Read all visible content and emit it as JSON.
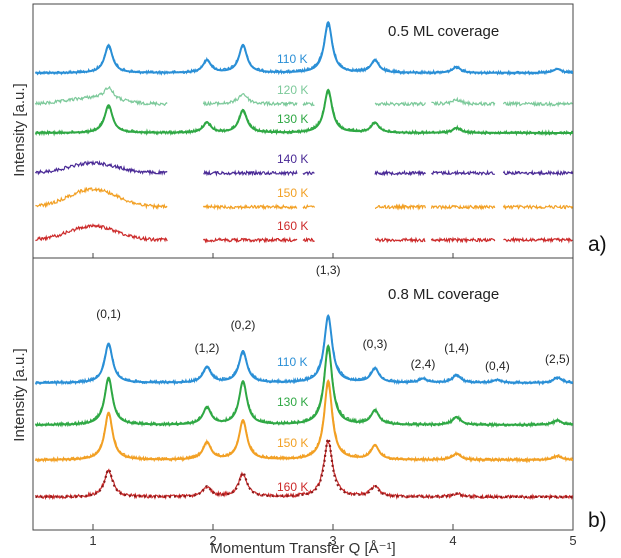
{
  "chart_data": [
    {
      "panel_label": "a)",
      "type": "line",
      "annotation": "0.5 ML coverage",
      "xlabel": "Momentum Transfer Q [Å⁻¹]",
      "ylabel": "Intensity [a.u.]",
      "xlim": [
        0.5,
        5.0
      ],
      "series": [
        {
          "name": "110 K",
          "color": "#2a8fd6",
          "fit": true,
          "segments": [
            [
              0.52,
              5.0
            ]
          ],
          "peaks": [
            [
              1.13,
              0.55
            ],
            [
              1.95,
              0.25
            ],
            [
              2.25,
              0.55
            ],
            [
              2.96,
              1.0
            ],
            [
              3.35,
              0.25
            ],
            [
              4.03,
              0.12
            ],
            [
              4.87,
              0.08
            ]
          ]
        },
        {
          "name": "120 K",
          "color": "#7cc99a",
          "fit": false,
          "segments": [
            [
              0.52,
              1.62
            ],
            [
              1.92,
              2.7
            ],
            [
              2.75,
              2.85
            ],
            [
              3.35,
              3.77
            ],
            [
              3.82,
              4.35
            ],
            [
              4.42,
              5.0
            ]
          ],
          "peaks": [
            [
              1.13,
              0.35
            ],
            [
              2.25,
              0.3
            ],
            [
              4.03,
              0.12
            ]
          ]
        },
        {
          "name": "130 K",
          "color": "#2fa844",
          "fit": true,
          "segments": [
            [
              0.52,
              5.0
            ]
          ],
          "peaks": [
            [
              1.13,
              0.55
            ],
            [
              1.95,
              0.2
            ],
            [
              2.25,
              0.45
            ],
            [
              2.96,
              0.85
            ],
            [
              3.35,
              0.2
            ],
            [
              4.03,
              0.1
            ]
          ]
        },
        {
          "name": "140 K",
          "color": "#4a2a96",
          "fit": false,
          "segments": [
            [
              0.52,
              1.62
            ],
            [
              1.92,
              2.7
            ],
            [
              2.75,
              2.85
            ],
            [
              3.35,
              3.77
            ],
            [
              3.82,
              4.35
            ],
            [
              4.42,
              5.0
            ]
          ],
          "peaks": []
        },
        {
          "name": "150 K",
          "color": "#f2a024",
          "fit": false,
          "segments": [
            [
              0.52,
              1.62
            ],
            [
              1.92,
              2.7
            ],
            [
              2.75,
              2.85
            ],
            [
              3.35,
              3.77
            ],
            [
              3.82,
              4.35
            ],
            [
              4.42,
              5.0
            ]
          ],
          "peaks": []
        },
        {
          "name": "160 K",
          "color": "#cc2a2a",
          "fit": false,
          "segments": [
            [
              0.52,
              1.62
            ],
            [
              1.92,
              2.7
            ],
            [
              2.75,
              2.85
            ],
            [
              3.35,
              3.77
            ],
            [
              3.82,
              4.35
            ],
            [
              4.42,
              5.0
            ]
          ],
          "peaks": []
        }
      ]
    },
    {
      "panel_label": "b)",
      "type": "line",
      "annotation": "0.8 ML coverage",
      "xlabel": "Momentum Transfer Q [Å⁻¹]",
      "ylabel": "Intensity [a.u.]",
      "xlim": [
        0.5,
        5.0
      ],
      "ticks": [
        1,
        2,
        3,
        4,
        5
      ],
      "miller_indices": [
        {
          "label": "(0,1)",
          "q": 1.13
        },
        {
          "label": "(1,2)",
          "q": 1.95
        },
        {
          "label": "(0,2)",
          "q": 2.25
        },
        {
          "label": "(1,3)",
          "q": 2.96
        },
        {
          "label": "(0,3)",
          "q": 3.35
        },
        {
          "label": "(2,4)",
          "q": 3.75
        },
        {
          "label": "(1,4)",
          "q": 4.03
        },
        {
          "label": "(0,4)",
          "q": 4.37
        },
        {
          "label": "(2,5)",
          "q": 4.87
        }
      ],
      "series": [
        {
          "name": "110 K",
          "color": "#2a8fd6",
          "fit": "solid",
          "peaks": [
            [
              1.13,
              0.5
            ],
            [
              1.95,
              0.2
            ],
            [
              2.25,
              0.4
            ],
            [
              2.96,
              0.85
            ],
            [
              3.35,
              0.18
            ],
            [
              3.75,
              0.05
            ],
            [
              4.03,
              0.1
            ],
            [
              4.37,
              0.04
            ],
            [
              4.87,
              0.07
            ]
          ]
        },
        {
          "name": "130 K",
          "color": "#2fa844",
          "fit": "solid",
          "peaks": [
            [
              1.13,
              0.6
            ],
            [
              1.95,
              0.22
            ],
            [
              2.25,
              0.55
            ],
            [
              2.96,
              1.0
            ],
            [
              3.35,
              0.18
            ],
            [
              4.03,
              0.1
            ],
            [
              4.87,
              0.06
            ]
          ]
        },
        {
          "name": "150 K",
          "color": "#f2a024",
          "fit": "solid",
          "peaks": [
            [
              1.13,
              0.6
            ],
            [
              1.95,
              0.22
            ],
            [
              2.25,
              0.5
            ],
            [
              2.96,
              1.0
            ],
            [
              3.35,
              0.18
            ],
            [
              4.03,
              0.08
            ],
            [
              4.87,
              0.05
            ]
          ]
        },
        {
          "name": "160 K",
          "color": "#cc2a2a",
          "fit": "dotted",
          "peaks": [
            [
              1.13,
              0.4
            ],
            [
              1.95,
              0.15
            ],
            [
              2.25,
              0.35
            ],
            [
              2.96,
              0.85
            ],
            [
              3.35,
              0.15
            ],
            [
              4.03,
              0.05
            ]
          ]
        }
      ]
    }
  ]
}
